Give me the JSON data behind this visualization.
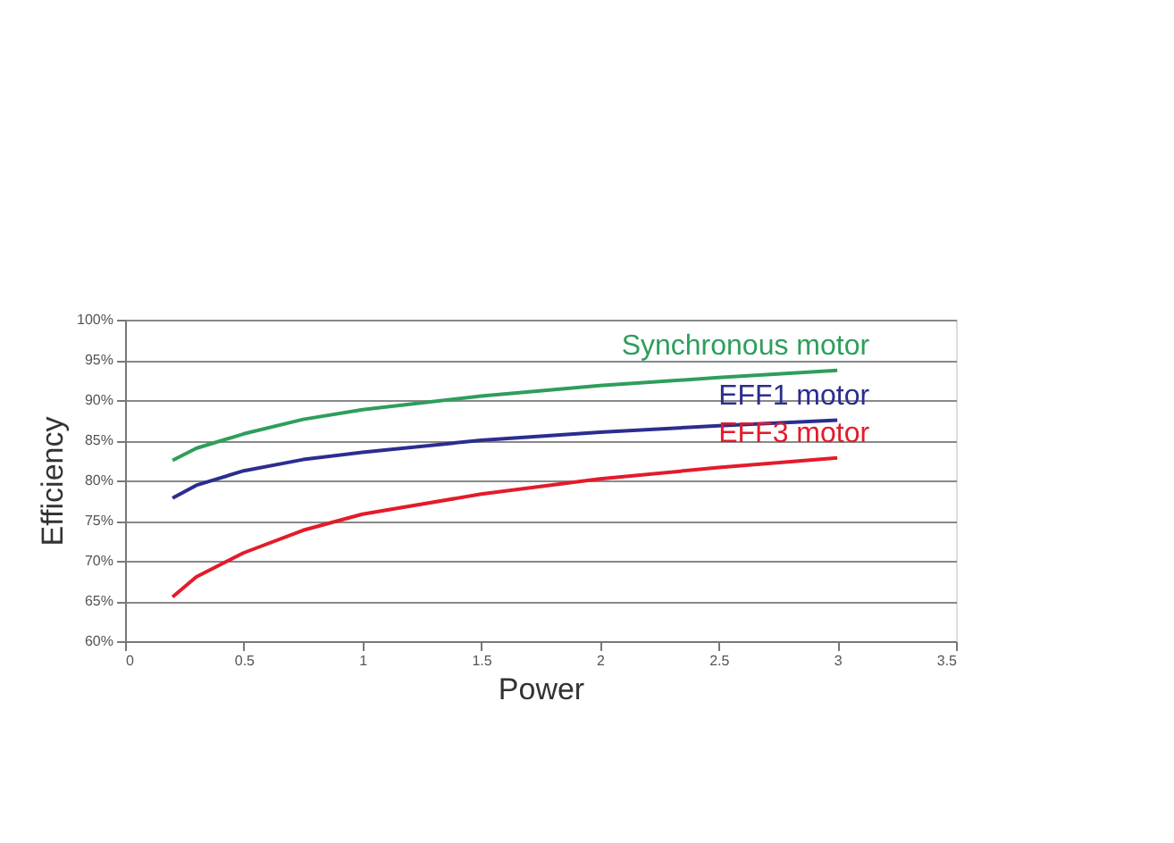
{
  "chart_data": {
    "type": "line",
    "xlabel": "Power",
    "ylabel": "Efficiency",
    "xlim": [
      0,
      3.5
    ],
    "xticks": [
      0,
      0.5,
      1,
      1.5,
      2,
      2.5,
      3,
      3.5
    ],
    "ylim": [
      60,
      100
    ],
    "yticks": [
      {
        "value": 60,
        "label": "60%"
      },
      {
        "value": 65,
        "label": "65%"
      },
      {
        "value": 70,
        "label": "70%"
      },
      {
        "value": 75,
        "label": "75%"
      },
      {
        "value": 80,
        "label": "80%"
      },
      {
        "value": 85,
        "label": "85%"
      },
      {
        "value": 90,
        "label": "90%"
      },
      {
        "value": 95,
        "label": "95%"
      },
      {
        "value": 100,
        "label": "100%"
      }
    ],
    "grid": "y",
    "legend": false,
    "marker": "none",
    "line_style": "solid",
    "x": [
      0.2,
      0.3,
      0.5,
      0.75,
      1,
      1.5,
      2,
      2.5,
      3
    ],
    "series": [
      {
        "name": "Synchronous motor",
        "color": "#2e9e5b",
        "values": [
          82.5,
          84,
          85.8,
          87.6,
          88.8,
          90.5,
          91.8,
          92.8,
          93.7
        ]
      },
      {
        "name": "EFF1 motor",
        "color": "#2b2d8f",
        "values": [
          77.8,
          79.4,
          81.2,
          82.6,
          83.5,
          85,
          86,
          86.8,
          87.5
        ]
      },
      {
        "name": "EFF3 motor",
        "color": "#e31b2a",
        "values": [
          65.5,
          68,
          71,
          73.8,
          75.8,
          78.3,
          80.2,
          81.6,
          82.8
        ]
      }
    ]
  }
}
